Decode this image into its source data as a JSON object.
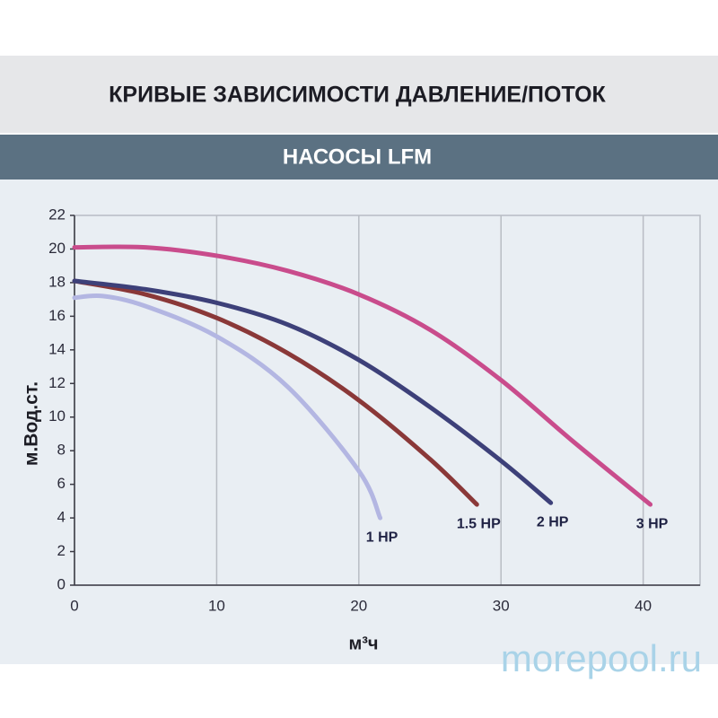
{
  "chart_data": {
    "type": "line",
    "title": "КРИВЫЕ ЗАВИСИМОСТИ ДАВЛЕНИЕ/ПОТОК",
    "subtitle": "НАСОСЫ LFM",
    "x_label": "м³ч",
    "y_label": "м.Вод.ст.",
    "watermark": "morepool.ru",
    "xlim": [
      0,
      44
    ],
    "ylim": [
      0,
      22
    ],
    "xticks": [
      0,
      10,
      20,
      30,
      40
    ],
    "yticks": [
      0,
      2,
      4,
      6,
      8,
      10,
      12,
      14,
      16,
      18,
      20,
      22
    ],
    "grid": true,
    "series": [
      {
        "name": "1 HP",
        "color": "#b3b6e2",
        "x": [
          0,
          2,
          5,
          10,
          15,
          20,
          21.5
        ],
        "values": [
          17.1,
          17.2,
          16.6,
          14.8,
          11.8,
          6.8,
          4.0
        ]
      },
      {
        "name": "1.5 HP",
        "color": "#8a3838",
        "x": [
          0,
          5,
          10,
          15,
          20,
          25,
          28.3
        ],
        "values": [
          18.1,
          17.3,
          15.9,
          13.8,
          11.0,
          7.5,
          4.8
        ]
      },
      {
        "name": "2 HP",
        "color": "#3d4079",
        "x": [
          0,
          5,
          10,
          15,
          20,
          25,
          30,
          33.5
        ],
        "values": [
          18.1,
          17.6,
          16.8,
          15.5,
          13.4,
          10.6,
          7.4,
          4.9
        ]
      },
      {
        "name": "3 HP",
        "color": "#c94c8c",
        "x": [
          0,
          5,
          10,
          15,
          20,
          25,
          30,
          35,
          40.5
        ],
        "values": [
          20.1,
          20.1,
          19.6,
          18.7,
          17.3,
          15.2,
          12.2,
          8.6,
          4.8
        ]
      }
    ]
  }
}
